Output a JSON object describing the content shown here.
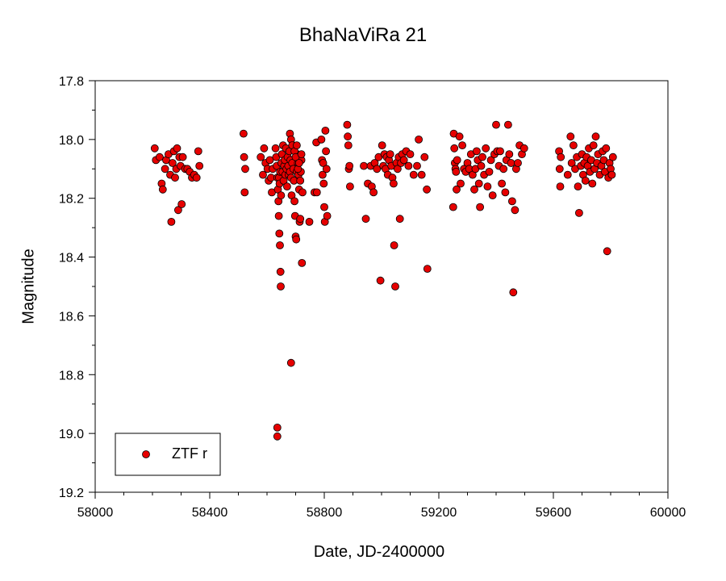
{
  "chart_data": {
    "type": "scatter",
    "title": "BhaNaViRa 21",
    "xlabel": "Date, JD-2400000",
    "ylabel": "Magnitude",
    "xlim": [
      58000,
      60000
    ],
    "ylim": [
      17.8,
      19.2
    ],
    "y_inverted": true,
    "xticks": [
      58000,
      58400,
      58800,
      59200,
      59600,
      60000
    ],
    "yticks": [
      17.8,
      18.0,
      18.2,
      18.4,
      18.6,
      18.8,
      19.0,
      19.2
    ],
    "ytick_labels": [
      "17.8",
      "18.0",
      "18.2",
      "18.4",
      "18.6",
      "18.8",
      "19.0",
      "19.2"
    ],
    "grid": false,
    "legend_position": "bottom-left",
    "colors": {
      "marker_fill": "#e60000",
      "marker_edge": "#000000"
    },
    "series": [
      {
        "name": "ZTF r",
        "points": [
          [
            58208,
            18.03
          ],
          [
            58212,
            18.07
          ],
          [
            58225,
            18.06
          ],
          [
            58232,
            18.15
          ],
          [
            58236,
            18.17
          ],
          [
            58244,
            18.1
          ],
          [
            58248,
            18.07
          ],
          [
            58256,
            18.05
          ],
          [
            58262,
            18.12
          ],
          [
            58266,
            18.28
          ],
          [
            58270,
            18.08
          ],
          [
            58275,
            18.04
          ],
          [
            58279,
            18.13
          ],
          [
            58283,
            18.1
          ],
          [
            58286,
            18.03
          ],
          [
            58290,
            18.24
          ],
          [
            58294,
            18.06
          ],
          [
            58298,
            18.09
          ],
          [
            58302,
            18.22
          ],
          [
            58306,
            18.06
          ],
          [
            58314,
            18.1
          ],
          [
            58322,
            18.1
          ],
          [
            58330,
            18.11
          ],
          [
            58338,
            18.13
          ],
          [
            58346,
            18.12
          ],
          [
            58354,
            18.13
          ],
          [
            58360,
            18.04
          ],
          [
            58364,
            18.09
          ],
          [
            58518,
            17.98
          ],
          [
            58520,
            18.06
          ],
          [
            58522,
            18.18
          ],
          [
            58524,
            18.1
          ],
          [
            58578,
            18.06
          ],
          [
            58586,
            18.12
          ],
          [
            58590,
            18.03
          ],
          [
            58595,
            18.08
          ],
          [
            58602,
            18.1
          ],
          [
            58606,
            18.14
          ],
          [
            58610,
            18.07
          ],
          [
            58614,
            18.13
          ],
          [
            58617,
            18.18
          ],
          [
            58620,
            18.1
          ],
          [
            58630,
            18.03
          ],
          [
            58632,
            18.06
          ],
          [
            58634,
            18.09
          ],
          [
            58636,
            18.13
          ],
          [
            58638,
            18.17
          ],
          [
            58640,
            18.21
          ],
          [
            58641,
            18.26
          ],
          [
            58643,
            18.32
          ],
          [
            58645,
            18.36
          ],
          [
            58647,
            18.45
          ],
          [
            58648,
            18.5
          ],
          [
            58636,
            18.98
          ],
          [
            58636,
            19.01
          ],
          [
            58642,
            18.13
          ],
          [
            58644,
            18.15
          ],
          [
            58646,
            18.11
          ],
          [
            58649,
            18.19
          ],
          [
            58650,
            18.08
          ],
          [
            58652,
            18.05
          ],
          [
            58654,
            18.11
          ],
          [
            58656,
            18.02
          ],
          [
            58658,
            18.14
          ],
          [
            58660,
            18.09
          ],
          [
            58662,
            18.07
          ],
          [
            58664,
            18.12
          ],
          [
            58666,
            18.03
          ],
          [
            58668,
            18.1
          ],
          [
            58670,
            18.16
          ],
          [
            58672,
            18.06
          ],
          [
            58674,
            18.09
          ],
          [
            58676,
            18.12
          ],
          [
            58678,
            18.04
          ],
          [
            58680,
            18.11
          ],
          [
            58682,
            18.07
          ],
          [
            58684,
            18.13
          ],
          [
            58686,
            18.19
          ],
          [
            58688,
            18.08
          ],
          [
            58690,
            18.02
          ],
          [
            58692,
            18.1
          ],
          [
            58694,
            18.14
          ],
          [
            58696,
            18.21
          ],
          [
            58698,
            18.26
          ],
          [
            58700,
            18.33
          ],
          [
            58702,
            18.34
          ],
          [
            58704,
            18.11
          ],
          [
            58706,
            18.05
          ],
          [
            58708,
            18.08
          ],
          [
            58710,
            18.12
          ],
          [
            58712,
            18.17
          ],
          [
            58714,
            18.28
          ],
          [
            58716,
            18.27
          ],
          [
            58718,
            18.11
          ],
          [
            58720,
            18.07
          ],
          [
            58722,
            18.42
          ],
          [
            58684,
            18.76
          ],
          [
            58680,
            17.98
          ],
          [
            58684,
            18.0
          ],
          [
            58688,
            18.02
          ],
          [
            58696,
            18.04
          ],
          [
            58700,
            18.06
          ],
          [
            58704,
            18.02
          ],
          [
            58708,
            18.1
          ],
          [
            58712,
            18.08
          ],
          [
            58716,
            18.14
          ],
          [
            58720,
            18.05
          ],
          [
            58724,
            18.18
          ],
          [
            58748,
            18.28
          ],
          [
            58766,
            18.18
          ],
          [
            58772,
            18.01
          ],
          [
            58774,
            18.18
          ],
          [
            58790,
            18.0
          ],
          [
            58792,
            18.07
          ],
          [
            58794,
            18.12
          ],
          [
            58796,
            18.08
          ],
          [
            58798,
            18.15
          ],
          [
            58800,
            18.23
          ],
          [
            58802,
            18.28
          ],
          [
            58804,
            17.97
          ],
          [
            58806,
            18.04
          ],
          [
            58808,
            18.1
          ],
          [
            58810,
            18.26
          ],
          [
            58880,
            17.95
          ],
          [
            58882,
            17.99
          ],
          [
            58884,
            18.02
          ],
          [
            58886,
            18.1
          ],
          [
            58888,
            18.09
          ],
          [
            58890,
            18.16
          ],
          [
            58938,
            18.09
          ],
          [
            58945,
            18.27
          ],
          [
            58952,
            18.15
          ],
          [
            58962,
            18.09
          ],
          [
            58966,
            18.16
          ],
          [
            58972,
            18.18
          ],
          [
            58976,
            18.08
          ],
          [
            58984,
            18.1
          ],
          [
            58990,
            18.06
          ],
          [
            58996,
            18.48
          ],
          [
            59002,
            18.02
          ],
          [
            59006,
            18.09
          ],
          [
            59010,
            18.05
          ],
          [
            59014,
            18.1
          ],
          [
            59018,
            18.06
          ],
          [
            59022,
            18.12
          ],
          [
            59026,
            18.07
          ],
          [
            59030,
            18.05
          ],
          [
            59034,
            18.09
          ],
          [
            59038,
            18.13
          ],
          [
            59042,
            18.15
          ],
          [
            59044,
            18.36
          ],
          [
            59048,
            18.5
          ],
          [
            59052,
            18.08
          ],
          [
            59056,
            18.1
          ],
          [
            59060,
            18.06
          ],
          [
            59064,
            18.27
          ],
          [
            59068,
            18.08
          ],
          [
            59072,
            18.05
          ],
          [
            59078,
            18.07
          ],
          [
            59086,
            18.04
          ],
          [
            59094,
            18.09
          ],
          [
            59100,
            18.05
          ],
          [
            59112,
            18.12
          ],
          [
            59124,
            18.09
          ],
          [
            59130,
            18.0
          ],
          [
            59140,
            18.12
          ],
          [
            59150,
            18.06
          ],
          [
            59158,
            18.17
          ],
          [
            59160,
            18.44
          ],
          [
            59250,
            18.23
          ],
          [
            59252,
            17.98
          ],
          [
            59254,
            18.03
          ],
          [
            59256,
            18.08
          ],
          [
            59258,
            18.1
          ],
          [
            59260,
            18.11
          ],
          [
            59262,
            18.17
          ],
          [
            59264,
            18.07
          ],
          [
            59272,
            17.99
          ],
          [
            59276,
            18.15
          ],
          [
            59282,
            18.02
          ],
          [
            59288,
            18.1
          ],
          [
            59294,
            18.11
          ],
          [
            59300,
            18.08
          ],
          [
            59306,
            18.1
          ],
          [
            59312,
            18.05
          ],
          [
            59318,
            18.12
          ],
          [
            59324,
            18.17
          ],
          [
            59328,
            18.1
          ],
          [
            59332,
            18.04
          ],
          [
            59336,
            18.07
          ],
          [
            59340,
            18.15
          ],
          [
            59344,
            18.23
          ],
          [
            59348,
            18.09
          ],
          [
            59352,
            18.06
          ],
          [
            59358,
            18.12
          ],
          [
            59364,
            18.03
          ],
          [
            59370,
            18.16
          ],
          [
            59376,
            18.11
          ],
          [
            59382,
            18.07
          ],
          [
            59388,
            18.19
          ],
          [
            59394,
            18.05
          ],
          [
            59400,
            17.95
          ],
          [
            59404,
            18.04
          ],
          [
            59410,
            18.09
          ],
          [
            59414,
            18.04
          ],
          [
            59420,
            18.15
          ],
          [
            59426,
            18.1
          ],
          [
            59432,
            18.18
          ],
          [
            59436,
            18.07
          ],
          [
            59442,
            17.95
          ],
          [
            59446,
            18.05
          ],
          [
            59452,
            18.08
          ],
          [
            59456,
            18.21
          ],
          [
            59460,
            18.52
          ],
          [
            59466,
            18.24
          ],
          [
            59470,
            18.1
          ],
          [
            59476,
            18.08
          ],
          [
            59482,
            18.02
          ],
          [
            59490,
            18.05
          ],
          [
            59498,
            18.03
          ],
          [
            59620,
            18.04
          ],
          [
            59622,
            18.1
          ],
          [
            59624,
            18.16
          ],
          [
            59626,
            18.06
          ],
          [
            59650,
            18.12
          ],
          [
            59660,
            17.99
          ],
          [
            59664,
            18.08
          ],
          [
            59670,
            18.02
          ],
          [
            59676,
            18.1
          ],
          [
            59682,
            18.06
          ],
          [
            59686,
            18.16
          ],
          [
            59690,
            18.25
          ],
          [
            59696,
            18.09
          ],
          [
            59700,
            18.05
          ],
          [
            59704,
            18.12
          ],
          [
            59708,
            18.08
          ],
          [
            59712,
            18.14
          ],
          [
            59716,
            18.06
          ],
          [
            59720,
            18.09
          ],
          [
            59724,
            18.03
          ],
          [
            59728,
            18.11
          ],
          [
            59732,
            18.07
          ],
          [
            59736,
            18.15
          ],
          [
            59740,
            18.02
          ],
          [
            59744,
            18.1
          ],
          [
            59748,
            17.99
          ],
          [
            59752,
            18.08
          ],
          [
            59756,
            18.05
          ],
          [
            59762,
            18.12
          ],
          [
            59768,
            18.09
          ],
          [
            59772,
            18.04
          ],
          [
            59776,
            18.07
          ],
          [
            59780,
            18.11
          ],
          [
            59784,
            18.03
          ],
          [
            59788,
            18.38
          ],
          [
            59792,
            18.13
          ],
          [
            59796,
            18.08
          ],
          [
            59800,
            18.1
          ],
          [
            59804,
            18.12
          ],
          [
            59808,
            18.06
          ]
        ]
      }
    ]
  }
}
